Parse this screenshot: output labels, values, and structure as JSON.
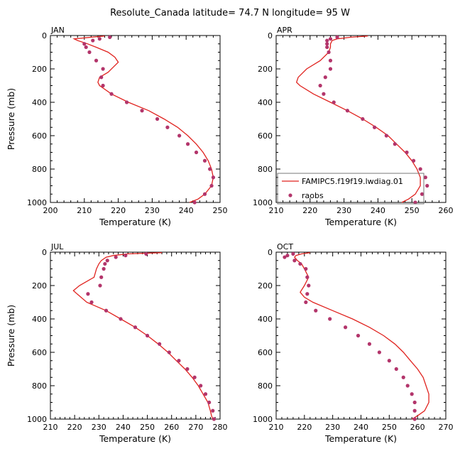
{
  "title": "Resolute_Canada   latitude= 74.7 N longitude= 95 W",
  "chart_data": [
    {
      "type": "line+scatter",
      "panel": "JAN",
      "xlabel": "Temperature (K)",
      "ylabel": "Pressure (mb)",
      "xlim": [
        200,
        250
      ],
      "xticks": [
        200,
        210,
        220,
        230,
        240,
        250
      ],
      "ylim": [
        1000,
        0
      ],
      "yticks": [
        0,
        200,
        400,
        600,
        800,
        1000
      ],
      "model": {
        "name": "FAMIPC5.f19f19.lwdiag.01",
        "color": "#e0231f",
        "p": [
          3,
          10,
          20,
          30,
          50,
          70,
          100,
          130,
          160,
          190,
          220,
          250,
          280,
          300,
          350,
          400,
          450,
          500,
          550,
          600,
          650,
          700,
          750,
          800,
          850,
          900,
          950,
          980,
          1000
        ],
        "t": [
          216,
          212,
          207,
          208,
          211,
          213.5,
          217,
          219,
          220,
          218.5,
          217,
          214.5,
          214,
          214.5,
          218,
          223,
          229,
          233.5,
          237.5,
          240.5,
          243,
          245,
          246.5,
          247.5,
          248,
          247.5,
          245.5,
          243.5,
          241
        ]
      },
      "raobs": {
        "name": "raobs",
        "color": "#b3356b",
        "p": [
          10,
          20,
          30,
          50,
          70,
          100,
          150,
          200,
          250,
          300,
          350,
          400,
          450,
          500,
          550,
          600,
          650,
          700,
          750,
          800,
          850,
          900,
          950,
          1000
        ],
        "t": [
          217.5,
          214.5,
          212.5,
          210,
          210.5,
          211.5,
          213.5,
          215.5,
          215,
          215.5,
          218,
          222.5,
          227,
          231.5,
          234.5,
          238,
          240.5,
          243,
          245.5,
          247,
          248,
          247.5,
          245.5,
          242.5
        ]
      }
    },
    {
      "type": "line+scatter",
      "panel": "APR",
      "xlabel": "Temperature (K)",
      "ylabel": "",
      "xlim": [
        210,
        260
      ],
      "xticks": [
        210,
        220,
        230,
        240,
        250,
        260
      ],
      "ylim": [
        1000,
        0
      ],
      "yticks": [
        0,
        200,
        400,
        600,
        800,
        1000
      ],
      "model": {
        "name": "FAMIPC5.f19f19.lwdiag.01",
        "color": "#e0231f",
        "p": [
          3,
          10,
          20,
          30,
          50,
          70,
          100,
          150,
          200,
          250,
          280,
          300,
          350,
          400,
          450,
          500,
          550,
          600,
          650,
          700,
          750,
          800,
          850,
          900,
          950,
          980,
          1000
        ],
        "t": [
          237,
          232,
          228,
          226.5,
          226,
          226,
          225.5,
          223,
          219,
          216.5,
          216,
          217,
          221,
          226,
          231,
          235.5,
          239.5,
          243,
          245.5,
          248,
          250,
          251.5,
          252.5,
          252.5,
          251,
          249,
          247
        ]
      },
      "raobs": {
        "name": "raobs",
        "color": "#b3356b",
        "p": [
          10,
          20,
          30,
          50,
          70,
          100,
          150,
          200,
          250,
          300,
          350,
          400,
          450,
          500,
          550,
          600,
          650,
          700,
          750,
          800,
          850,
          900,
          950,
          1000
        ],
        "t": [
          228,
          226,
          225,
          225,
          225,
          225.5,
          226,
          226,
          224.5,
          223,
          224,
          227,
          231,
          235.5,
          239,
          242.5,
          245,
          248.5,
          250.5,
          252.5,
          254,
          254.5,
          253,
          251
        ]
      }
    },
    {
      "type": "line+scatter",
      "panel": "JUL",
      "xlabel": "Temperature (K)",
      "ylabel": "Pressure (mb)",
      "xlim": [
        210,
        280
      ],
      "xticks": [
        210,
        220,
        230,
        240,
        250,
        260,
        270,
        280
      ],
      "ylim": [
        1000,
        0
      ],
      "yticks": [
        0,
        200,
        400,
        600,
        800,
        1000
      ],
      "model": {
        "name": "FAMIPC5.f19f19.lwdiag.01",
        "color": "#e0231f",
        "p": [
          3,
          10,
          20,
          30,
          50,
          70,
          100,
          150,
          200,
          230,
          250,
          300,
          350,
          400,
          450,
          500,
          550,
          600,
          650,
          700,
          750,
          800,
          850,
          900,
          950,
          980,
          1000
        ],
        "t": [
          256,
          242,
          236,
          233,
          231,
          230,
          229,
          228,
          222,
          219.5,
          221,
          225,
          233,
          239,
          245,
          250,
          254.5,
          258.5,
          262,
          265.5,
          268.5,
          271,
          273,
          275,
          276,
          276.5,
          277
        ]
      },
      "raobs": {
        "name": "raobs",
        "color": "#b3356b",
        "p": [
          10,
          20,
          30,
          50,
          70,
          100,
          150,
          200,
          250,
          300,
          350,
          400,
          450,
          500,
          550,
          600,
          650,
          700,
          750,
          800,
          850,
          900,
          950,
          1000
        ],
        "t": [
          249.5,
          241,
          237,
          233.5,
          232.5,
          232,
          231,
          230.5,
          225.5,
          227,
          233,
          239,
          245,
          250,
          255,
          259,
          263,
          266.5,
          269.5,
          272,
          274,
          275.5,
          277,
          277.5
        ]
      }
    },
    {
      "type": "line+scatter",
      "panel": "OCT",
      "xlabel": "Temperature (K)",
      "ylabel": "",
      "xlim": [
        210,
        270
      ],
      "xticks": [
        210,
        220,
        230,
        240,
        250,
        260,
        270
      ],
      "ylim": [
        1000,
        0
      ],
      "yticks": [
        0,
        200,
        400,
        600,
        800,
        1000
      ],
      "model": {
        "name": "FAMIPC5.f19f19.lwdiag.01",
        "color": "#e0231f",
        "p": [
          3,
          10,
          20,
          30,
          50,
          70,
          100,
          150,
          200,
          240,
          270,
          300,
          350,
          400,
          450,
          500,
          550,
          600,
          650,
          700,
          750,
          800,
          850,
          900,
          950,
          980,
          1000
        ],
        "t": [
          222,
          219,
          217,
          216.5,
          217.5,
          219,
          220,
          221.5,
          220,
          218.5,
          220,
          223,
          230,
          237,
          243,
          248,
          252,
          255,
          257.5,
          260,
          262,
          263,
          264,
          264,
          262.5,
          260,
          258
        ]
      },
      "raobs": {
        "name": "raobs",
        "color": "#b3356b",
        "p": [
          10,
          20,
          30,
          50,
          70,
          100,
          150,
          200,
          250,
          300,
          350,
          400,
          450,
          500,
          550,
          600,
          650,
          700,
          750,
          800,
          850,
          900,
          950,
          1000
        ],
        "t": [
          216,
          214,
          213,
          216.5,
          218.5,
          220.5,
          221,
          221.5,
          221,
          220.5,
          224,
          229,
          234.5,
          239,
          243,
          246.5,
          250,
          252.5,
          255,
          256.5,
          258,
          259,
          259,
          259
        ]
      }
    }
  ]
}
